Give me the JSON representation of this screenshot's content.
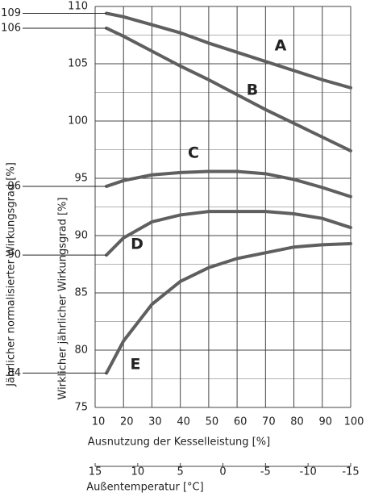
{
  "chart_data": {
    "type": "line",
    "x_label": "Ausnutzung der Kesselleistung [%]",
    "y_label": "Wirklicher jährlicher Wirkungsgrad [%]",
    "y_outer_label": "Jährlicher normalisierter Wirkungsgrad [%]",
    "x2_label": "Außentemperatur [°C]",
    "x": [
      14,
      20,
      30,
      40,
      50,
      60,
      70,
      80,
      90,
      100
    ],
    "xlim": [
      10,
      100
    ],
    "xticks": [
      10,
      20,
      30,
      40,
      50,
      60,
      70,
      80,
      90,
      100
    ],
    "ylim": [
      75,
      110
    ],
    "yticks": [
      75,
      80,
      85,
      90,
      95,
      100,
      105,
      110
    ],
    "y_minor_ticks": [
      77.5,
      82.5,
      87.5,
      92.5,
      97.5,
      102.5,
      107.5
    ],
    "x2lim": [
      15,
      -15
    ],
    "x2ticks": [
      15,
      10,
      5,
      0,
      -5,
      -10,
      -15
    ],
    "grid": true,
    "series": [
      {
        "name": "A",
        "color": "#5f5f5f",
        "normalized": 109,
        "values": [
          109.4,
          109.1,
          108.4,
          107.7,
          106.8,
          106.0,
          105.2,
          104.4,
          103.6,
          102.9
        ]
      },
      {
        "name": "B",
        "color": "#5f5f5f",
        "normalized": 106,
        "values": [
          108.1,
          107.4,
          106.1,
          104.8,
          103.6,
          102.3,
          101.0,
          99.8,
          98.6,
          97.4
        ]
      },
      {
        "name": "C",
        "color": "#5f5f5f",
        "normalized": 96,
        "values": [
          94.3,
          94.8,
          95.3,
          95.5,
          95.6,
          95.6,
          95.4,
          94.9,
          94.2,
          93.4
        ]
      },
      {
        "name": "D",
        "color": "#5f5f5f",
        "normalized": 90,
        "values": [
          88.3,
          89.8,
          91.2,
          91.8,
          92.1,
          92.1,
          92.1,
          91.9,
          91.5,
          90.7
        ]
      },
      {
        "name": "E",
        "color": "#5f5f5f",
        "normalized": 84,
        "values": [
          78.0,
          80.8,
          84.0,
          86.0,
          87.2,
          88.0,
          88.5,
          89.0,
          89.2,
          89.3
        ]
      }
    ]
  }
}
